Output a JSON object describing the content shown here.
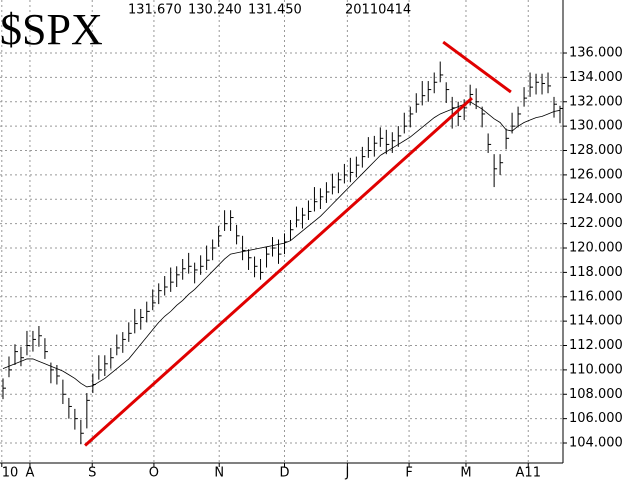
{
  "chart_data": {
    "type": "ohlc",
    "title": "$SPX",
    "header": [
      "131.670",
      "130.240",
      "131.450",
      "20110414"
    ],
    "bars": {
      "color": "#000000",
      "high": [
        109.3,
        111.1,
        112.1,
        111.9,
        113.2,
        113.2,
        113.6,
        112.6,
        110.6,
        110.4,
        109.2,
        107.7,
        106.8,
        105.9,
        108.1,
        109.7,
        111.2,
        111.2,
        111.8,
        112.9,
        113.1,
        113.9,
        115.0,
        115.0,
        115.6,
        116.6,
        117.1,
        117.7,
        118.4,
        118.5,
        119.1,
        119.6,
        118.8,
        119.4,
        120.2,
        120.7,
        121.8,
        123.1,
        123.1,
        121.9,
        121.0,
        119.9,
        119.3,
        119.1,
        120.1,
        120.9,
        120.7,
        121.2,
        122.3,
        123.4,
        123.3,
        123.9,
        125.0,
        124.9,
        125.4,
        126.1,
        126.2,
        126.9,
        127.4,
        127.5,
        128.3,
        129.1,
        129.2,
        129.9,
        129.7,
        129.5,
        130.0,
        131.1,
        131.6,
        132.7,
        133.7,
        133.7,
        134.4,
        135.3,
        133.6,
        132.4,
        132.0,
        132.2,
        133.4,
        133.1,
        131.6,
        129.4,
        127.7,
        127.7,
        129.8,
        131.1,
        131.6,
        133.2,
        134.4,
        134.3,
        134.3,
        134.4,
        132.4,
        131.67
      ],
      "low": [
        107.6,
        109.4,
        110.4,
        110.3,
        111.2,
        111.5,
        111.9,
        110.9,
        108.9,
        108.8,
        107.2,
        106.0,
        105.1,
        103.9,
        105.2,
        108.1,
        109.2,
        109.5,
        110.1,
        111.2,
        111.4,
        112.3,
        113.0,
        113.3,
        113.9,
        114.9,
        115.4,
        116.1,
        116.4,
        116.8,
        117.4,
        117.9,
        117.1,
        117.8,
        118.2,
        119.0,
        120.1,
        121.4,
        121.4,
        120.3,
        119.0,
        118.2,
        117.6,
        117.4,
        118.4,
        119.3,
        118.7,
        119.5,
        120.6,
        121.7,
        121.6,
        122.3,
        123.0,
        123.2,
        123.7,
        124.4,
        124.5,
        125.3,
        125.4,
        125.8,
        126.6,
        127.4,
        127.5,
        128.3,
        127.7,
        127.8,
        128.3,
        129.4,
        129.9,
        131.1,
        131.7,
        132.0,
        132.7,
        133.6,
        131.9,
        129.8,
        130.0,
        130.5,
        131.7,
        131.4,
        129.9,
        127.8,
        125.0,
        126.0,
        128.1,
        129.4,
        129.9,
        131.6,
        132.4,
        132.6,
        132.6,
        132.7,
        130.7,
        130.24
      ],
      "close": [
        108.5,
        110,
        111.5,
        111,
        112,
        112.5,
        112.8,
        111.5,
        110,
        109.5,
        108,
        107,
        106,
        104.8,
        107.5,
        108.8,
        110,
        110.5,
        111,
        111.8,
        112.5,
        113,
        113.8,
        114.3,
        114.8,
        115.5,
        116.5,
        116.8,
        117.2,
        117.8,
        118.3,
        118.5,
        118.2,
        118.5,
        119,
        120,
        121,
        122,
        122.5,
        121,
        119.8,
        119.2,
        118.5,
        118,
        119.5,
        120,
        119.5,
        120.5,
        121.5,
        122.3,
        122.7,
        123,
        123.8,
        124.2,
        124.6,
        125,
        125.6,
        126,
        126.2,
        126.8,
        127.5,
        128,
        128.6,
        129,
        128.5,
        128.8,
        129.2,
        130,
        131,
        131.8,
        132.5,
        133,
        133.6,
        134.2,
        133,
        131.5,
        130.8,
        131.5,
        132.6,
        132,
        131,
        128.5,
        126.5,
        127,
        129,
        130,
        131,
        132.3,
        133.2,
        133.6,
        133.5,
        133.3,
        131.8,
        131.45
      ]
    },
    "moving_average": {
      "color": "#000000",
      "values": [
        110.1,
        110.3,
        110.5,
        110.7,
        110.9,
        110.9,
        110.7,
        110.5,
        110.3,
        110.1,
        109.9,
        109.6,
        109.3,
        108.9,
        108.6,
        108.7,
        109,
        109.3,
        109.7,
        110.1,
        110.5,
        110.9,
        111.5,
        112.1,
        112.7,
        113.3,
        113.9,
        114.4,
        114.8,
        115.3,
        115.7,
        116.2,
        116.6,
        117.1,
        117.6,
        118.1,
        118.6,
        119.1,
        119.5,
        119.6,
        119.7,
        119.8,
        119.9,
        120,
        120.1,
        120.2,
        120.3,
        120.4,
        120.6,
        121,
        121.4,
        121.8,
        122.2,
        122.6,
        123.1,
        123.6,
        124.1,
        124.6,
        125.1,
        125.6,
        126.1,
        126.6,
        127.1,
        127.6,
        127.9,
        128.2,
        128.5,
        128.8,
        129.1,
        129.5,
        129.9,
        130.3,
        130.7,
        131,
        131.2,
        131.4,
        131.6,
        131.8,
        132,
        131.7,
        131.4,
        131,
        130.6,
        130.3,
        129.7,
        129.6,
        130,
        130.3,
        130.5,
        130.7,
        130.8,
        131,
        131.2,
        131.3
      ]
    },
    "trendlines": {
      "color": "#e00000",
      "lines": [
        {
          "x": [
            14.2,
            78.8
          ],
          "y": [
            103.8,
            132.3
          ]
        },
        {
          "x": [
            74.0,
            85.3
          ],
          "y": [
            136.9,
            132.8
          ]
        }
      ]
    },
    "xlim": [
      0,
      94
    ],
    "xticks": [
      {
        "value": 0.3,
        "label": "10"
      },
      {
        "value": 5.0,
        "label": "A"
      },
      {
        "value": 15.4,
        "label": "S"
      },
      {
        "value": 25.7,
        "label": "O"
      },
      {
        "value": 36.6,
        "label": "N"
      },
      {
        "value": 47.5,
        "label": "D"
      },
      {
        "value": 58.0,
        "label": "J"
      },
      {
        "value": 68.3,
        "label": "F"
      },
      {
        "value": 77.8,
        "label": "M"
      },
      {
        "value": 88.2,
        "label": "A11"
      }
    ],
    "ylim": [
      102.36,
      140.35
    ],
    "yticks": [
      {
        "value": 104,
        "label": "104.000"
      },
      {
        "value": 106,
        "label": "106.000"
      },
      {
        "value": 108,
        "label": "108.000"
      },
      {
        "value": 110,
        "label": "110.000"
      },
      {
        "value": 112,
        "label": "112.000"
      },
      {
        "value": 114,
        "label": "114.000"
      },
      {
        "value": 116,
        "label": "116.000"
      },
      {
        "value": 118,
        "label": "118.000"
      },
      {
        "value": 120,
        "label": "120.000"
      },
      {
        "value": 122,
        "label": "122.000"
      },
      {
        "value": 124,
        "label": "124.000"
      },
      {
        "value": 126,
        "label": "126.000"
      },
      {
        "value": 128,
        "label": "128.000"
      },
      {
        "value": 130,
        "label": "130.000"
      },
      {
        "value": 132,
        "label": "132.000"
      },
      {
        "value": 134,
        "label": "134.000"
      },
      {
        "value": 136,
        "label": "136.000"
      }
    ],
    "grid": true
  }
}
